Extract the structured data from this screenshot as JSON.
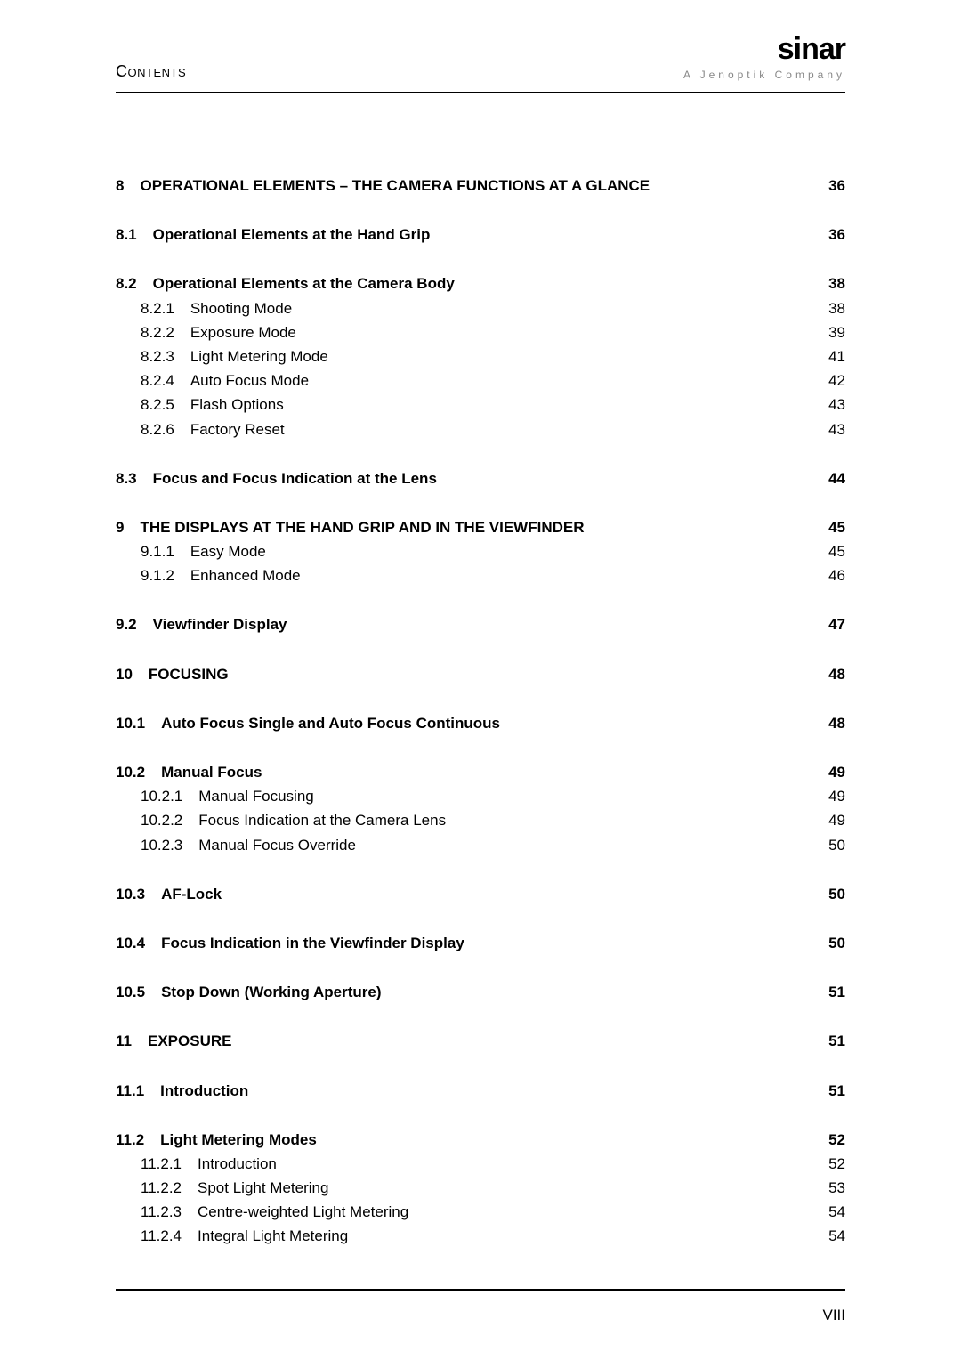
{
  "header": {
    "section": "Contents",
    "brand": "sinar",
    "tagline": "A Jenoptik Company"
  },
  "footer": {
    "page": "VIII"
  },
  "toc": [
    {
      "kind": "main",
      "num": "8",
      "title": "OPERATIONAL ELEMENTS – THE CAMERA FUNCTIONS AT A GLANCE",
      "page": "36",
      "gap": "lg"
    },
    {
      "kind": "sec",
      "num": "8.1",
      "title": "Operational Elements at the Hand Grip",
      "page": "36",
      "gap": "lg"
    },
    {
      "kind": "sec",
      "num": "8.2",
      "title": "Operational Elements at the Camera Body",
      "page": "38"
    },
    {
      "kind": "sub",
      "num": "8.2.1",
      "title": "Shooting Mode",
      "page": "38"
    },
    {
      "kind": "sub",
      "num": "8.2.2",
      "title": "Exposure Mode",
      "page": "39"
    },
    {
      "kind": "sub",
      "num": "8.2.3",
      "title": "Light Metering Mode",
      "page": "41"
    },
    {
      "kind": "sub",
      "num": "8.2.4",
      "title": "Auto Focus Mode",
      "page": "42"
    },
    {
      "kind": "sub",
      "num": "8.2.5",
      "title": "Flash Options",
      "page": "43"
    },
    {
      "kind": "sub",
      "num": "8.2.6",
      "title": "Factory Reset",
      "page": "43",
      "gap": "lg"
    },
    {
      "kind": "sec",
      "num": "8.3",
      "title": "Focus and Focus Indication at the Lens",
      "page": "44",
      "gap": "lg"
    },
    {
      "kind": "main",
      "num": "9",
      "title": "THE DISPLAYS AT THE HAND GRIP AND IN THE VIEWFINDER",
      "page": "45"
    },
    {
      "kind": "sub",
      "num": "9.1.1",
      "title": "Easy Mode",
      "page": "45"
    },
    {
      "kind": "sub",
      "num": "9.1.2",
      "title": "Enhanced Mode",
      "page": "46",
      "gap": "lg"
    },
    {
      "kind": "sec",
      "num": "9.2",
      "title": "Viewfinder Display",
      "page": "47",
      "gap": "lg"
    },
    {
      "kind": "main",
      "num": "10",
      "title": "FOCUSING",
      "page": "48",
      "gap": "lg"
    },
    {
      "kind": "sec",
      "num": "10.1",
      "title": "Auto Focus Single and Auto Focus Continuous",
      "page": "48",
      "gap": "lg"
    },
    {
      "kind": "sec",
      "num": "10.2",
      "title": "Manual Focus",
      "page": "49"
    },
    {
      "kind": "sub",
      "num": "10.2.1",
      "title": "Manual Focusing",
      "page": "49"
    },
    {
      "kind": "sub",
      "num": "10.2.2",
      "title": "Focus Indication at the Camera Lens",
      "page": "49"
    },
    {
      "kind": "sub",
      "num": "10.2.3",
      "title": "Manual Focus Override",
      "page": "50",
      "gap": "lg"
    },
    {
      "kind": "sec",
      "num": "10.3",
      "title": "AF-Lock",
      "page": "50",
      "gap": "lg"
    },
    {
      "kind": "sec",
      "num": "10.4",
      "title": "Focus Indication in the Viewfinder Display",
      "page": "50",
      "gap": "lg"
    },
    {
      "kind": "sec",
      "num": "10.5",
      "title": "Stop Down (Working Aperture)",
      "page": "51",
      "gap": "lg"
    },
    {
      "kind": "main",
      "num": "11",
      "title": "EXPOSURE",
      "page": "51",
      "gap": "lg"
    },
    {
      "kind": "sec",
      "num": "11.1",
      "title": "Introduction",
      "page": "51",
      "gap": "lg"
    },
    {
      "kind": "sec",
      "num": "11.2",
      "title": "Light Metering Modes",
      "page": "52"
    },
    {
      "kind": "sub",
      "num": "11.2.1",
      "title": "Introduction",
      "page": "52"
    },
    {
      "kind": "sub",
      "num": "11.2.2",
      "title": "Spot Light Metering",
      "page": "53"
    },
    {
      "kind": "sub",
      "num": "11.2.3",
      "title": "Centre-weighted Light Metering",
      "page": "54"
    },
    {
      "kind": "sub",
      "num": "11.2.4",
      "title": "Integral Light Metering",
      "page": "54"
    }
  ]
}
